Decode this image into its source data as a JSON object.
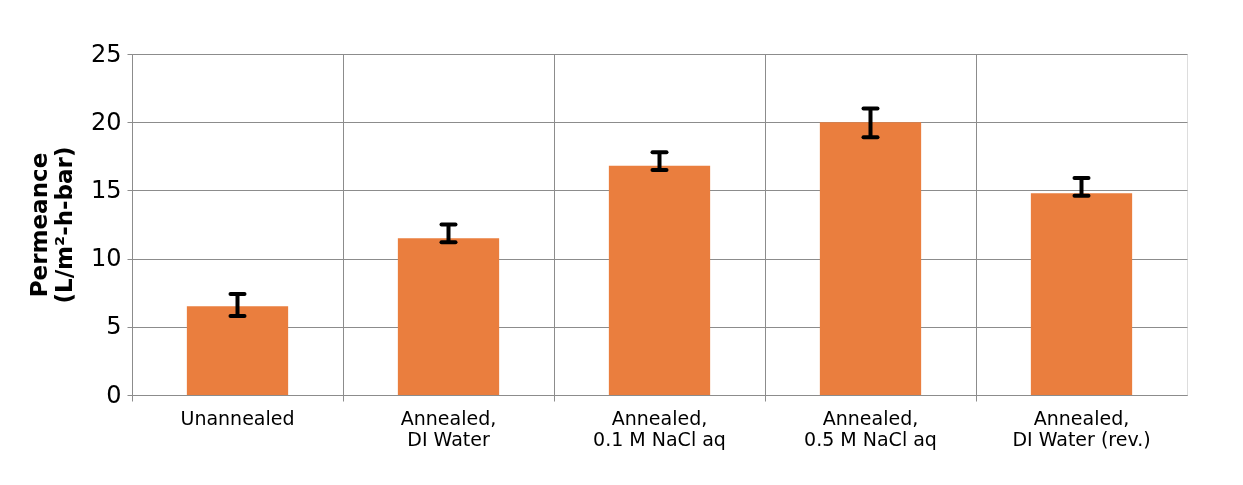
{
  "chart_data": {
    "type": "bar",
    "ylabel": "Permeance\n(L/m²-h-bar)",
    "categories": [
      "Unannealed",
      "Annealed,\nDI Water",
      "Annealed,\n0.1 M NaCl aq",
      "Annealed,\n0.5 M NaCl aq",
      "Annealed,\nDI Water (rev.)"
    ],
    "values": [
      6.5,
      11.5,
      16.8,
      20,
      14.8
    ],
    "errors": [
      [
        5.8,
        7.4
      ],
      [
        11.2,
        12.5
      ],
      [
        16.5,
        17.8
      ],
      [
        18.9,
        21.0
      ],
      [
        14.6,
        15.9
      ]
    ],
    "color": "#ea7e3e",
    "ylim": [
      0,
      25
    ],
    "yticks": [
      0,
      5,
      10,
      15,
      20,
      25
    ],
    "grid": true
  }
}
